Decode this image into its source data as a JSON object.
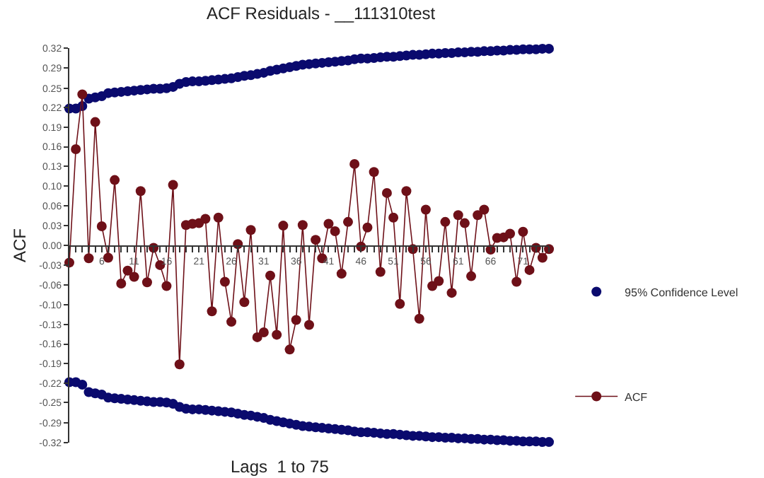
{
  "chart_data": {
    "type": "line",
    "title": "ACF Residuals - __111310test",
    "xlabel": "Lags  1 to 75",
    "ylabel": "ACF",
    "x": [
      1,
      2,
      3,
      4,
      5,
      6,
      7,
      8,
      9,
      10,
      11,
      12,
      13,
      14,
      15,
      16,
      17,
      18,
      19,
      20,
      21,
      22,
      23,
      24,
      25,
      26,
      27,
      28,
      29,
      30,
      31,
      32,
      33,
      34,
      35,
      36,
      37,
      38,
      39,
      40,
      41,
      42,
      43,
      44,
      45,
      46,
      47,
      48,
      49,
      50,
      51,
      52,
      53,
      54,
      55,
      56,
      57,
      58,
      59,
      60,
      61,
      62,
      63,
      64,
      65,
      66,
      67,
      68,
      69,
      70,
      71,
      72,
      73,
      74,
      75
    ],
    "series": [
      {
        "name": "95% Confidence Level",
        "type": "scatter",
        "color": "#0a0a6e",
        "values": [
          0.222,
          0.222,
          0.226,
          0.238,
          0.24,
          0.242,
          0.247,
          0.248,
          0.249,
          0.25,
          0.251,
          0.252,
          0.253,
          0.254,
          0.254,
          0.255,
          0.257,
          0.262,
          0.265,
          0.266,
          0.266,
          0.267,
          0.268,
          0.269,
          0.27,
          0.271,
          0.273,
          0.275,
          0.276,
          0.278,
          0.28,
          0.283,
          0.285,
          0.287,
          0.289,
          0.291,
          0.293,
          0.294,
          0.295,
          0.296,
          0.297,
          0.298,
          0.299,
          0.3,
          0.302,
          0.303,
          0.303,
          0.304,
          0.305,
          0.306,
          0.306,
          0.307,
          0.308,
          0.309,
          0.309,
          0.31,
          0.311,
          0.311,
          0.312,
          0.312,
          0.313,
          0.313,
          0.314,
          0.314,
          0.315,
          0.315,
          0.316,
          0.316,
          0.317,
          0.317,
          0.318,
          0.318,
          0.318,
          0.319,
          0.319
        ]
      },
      {
        "type": "scatter",
        "color": "#0a0a6e",
        "values": [
          -0.222,
          -0.222,
          -0.226,
          -0.238,
          -0.24,
          -0.242,
          -0.247,
          -0.248,
          -0.249,
          -0.25,
          -0.251,
          -0.252,
          -0.253,
          -0.254,
          -0.254,
          -0.255,
          -0.257,
          -0.262,
          -0.265,
          -0.266,
          -0.266,
          -0.267,
          -0.268,
          -0.269,
          -0.27,
          -0.271,
          -0.273,
          -0.275,
          -0.276,
          -0.278,
          -0.28,
          -0.283,
          -0.285,
          -0.287,
          -0.289,
          -0.291,
          -0.293,
          -0.294,
          -0.295,
          -0.296,
          -0.297,
          -0.298,
          -0.299,
          -0.3,
          -0.302,
          -0.303,
          -0.303,
          -0.304,
          -0.305,
          -0.306,
          -0.306,
          -0.307,
          -0.308,
          -0.309,
          -0.309,
          -0.31,
          -0.311,
          -0.311,
          -0.312,
          -0.312,
          -0.313,
          -0.313,
          -0.314,
          -0.314,
          -0.315,
          -0.315,
          -0.316,
          -0.316,
          -0.317,
          -0.317,
          -0.318,
          -0.318,
          -0.318,
          -0.319,
          -0.319
        ]
      },
      {
        "name": "ACF",
        "color": "#6e1018",
        "values": [
          -0.028,
          0.156,
          0.245,
          -0.021,
          0.2,
          0.031,
          -0.02,
          0.106,
          -0.062,
          -0.041,
          -0.051,
          0.088,
          -0.06,
          -0.004,
          -0.032,
          -0.066,
          0.098,
          -0.193,
          0.033,
          0.035,
          0.036,
          0.043,
          -0.107,
          0.045,
          -0.059,
          -0.124,
          0.002,
          -0.092,
          0.025,
          -0.149,
          -0.141,
          -0.049,
          -0.145,
          0.032,
          -0.169,
          -0.121,
          0.033,
          -0.129,
          0.009,
          -0.021,
          0.035,
          0.023,
          -0.046,
          0.038,
          0.132,
          -0.002,
          0.029,
          0.119,
          -0.043,
          0.085,
          0.045,
          -0.095,
          0.088,
          -0.006,
          -0.119,
          0.058,
          -0.066,
          -0.058,
          0.038,
          -0.077,
          0.049,
          0.036,
          -0.05,
          0.049,
          0.058,
          -0.007,
          0.012,
          0.013,
          0.019,
          -0.059,
          0.022,
          -0.04,
          -0.004,
          -0.02,
          -0.006
        ]
      }
    ],
    "xlim": [
      1,
      75
    ],
    "xticks": [
      {
        "value": 1,
        "label": null
      },
      {
        "value": 2,
        "label": null
      },
      {
        "value": 3,
        "label": null
      },
      {
        "value": 4,
        "label": null
      },
      {
        "value": 5,
        "label": null
      },
      6,
      {
        "value": 7,
        "label": null
      },
      {
        "value": 8,
        "label": null
      },
      {
        "value": 9,
        "label": null
      },
      {
        "value": 10,
        "label": null
      },
      11,
      {
        "value": 12,
        "label": null
      },
      {
        "value": 13,
        "label": null
      },
      {
        "value": 14,
        "label": null
      },
      {
        "value": 15,
        "label": null
      },
      16,
      {
        "value": 17,
        "label": null
      },
      {
        "value": 18,
        "label": null
      },
      {
        "value": 19,
        "label": null
      },
      {
        "value": 20,
        "label": null
      },
      21,
      {
        "value": 22,
        "label": null
      },
      {
        "value": 23,
        "label": null
      },
      {
        "value": 24,
        "label": null
      },
      {
        "value": 25,
        "label": null
      },
      26,
      {
        "value": 27,
        "label": null
      },
      {
        "value": 28,
        "label": null
      },
      {
        "value": 29,
        "label": null
      },
      {
        "value": 30,
        "label": null
      },
      31,
      {
        "value": 32,
        "label": null
      },
      {
        "value": 33,
        "label": null
      },
      {
        "value": 34,
        "label": null
      },
      {
        "value": 35,
        "label": null
      },
      36,
      {
        "value": 37,
        "label": null
      },
      {
        "value": 38,
        "label": null
      },
      {
        "value": 39,
        "label": null
      },
      {
        "value": 40,
        "label": null
      },
      41,
      {
        "value": 42,
        "label": null
      },
      {
        "value": 43,
        "label": null
      },
      {
        "value": 44,
        "label": null
      },
      {
        "value": 45,
        "label": null
      },
      46,
      {
        "value": 47,
        "label": null
      },
      {
        "value": 48,
        "label": null
      },
      {
        "value": 49,
        "label": null
      },
      {
        "value": 50,
        "label": null
      },
      51,
      {
        "value": 52,
        "label": null
      },
      {
        "value": 53,
        "label": null
      },
      {
        "value": 54,
        "label": null
      },
      {
        "value": 55,
        "label": null
      },
      56,
      {
        "value": 57,
        "label": null
      },
      {
        "value": 58,
        "label": null
      },
      {
        "value": 59,
        "label": null
      },
      {
        "value": 60,
        "label": null
      },
      61,
      {
        "value": 62,
        "label": null
      },
      {
        "value": 63,
        "label": null
      },
      {
        "value": 64,
        "label": null
      },
      {
        "value": 65,
        "label": null
      },
      66,
      {
        "value": 67,
        "label": null
      },
      {
        "value": 68,
        "label": null
      },
      {
        "value": 69,
        "label": null
      },
      {
        "value": 70,
        "label": null
      },
      71,
      {
        "value": 72,
        "label": null
      },
      {
        "value": 73,
        "label": null
      },
      {
        "value": 74,
        "label": null
      },
      {
        "value": 75,
        "label": null
      }
    ],
    "ylim": [
      -0.32,
      0.32
    ],
    "yticks": [
      {
        "value": -0.32,
        "label": "-0.32"
      },
      {
        "value": -0.288,
        "label": "-0.29"
      },
      {
        "value": -0.255,
        "label": "-0.25"
      },
      {
        "value": -0.224,
        "label": "-0.22"
      },
      {
        "value": -0.192,
        "label": "-0.19"
      },
      {
        "value": -0.16,
        "label": "-0.16"
      },
      {
        "value": -0.128,
        "label": "-0.13"
      },
      {
        "value": -0.096,
        "label": "-0.10"
      },
      {
        "value": -0.064,
        "label": "-0.06"
      },
      {
        "value": -0.032,
        "label": "-0.03"
      },
      {
        "value": 0,
        "label": "0.00"
      },
      {
        "value": 0.032,
        "label": "0.03"
      },
      {
        "value": 0.064,
        "label": "0.06"
      },
      {
        "value": 0.096,
        "label": "0.10"
      },
      {
        "value": 0.128,
        "label": "0.13"
      },
      {
        "value": 0.16,
        "label": "0.16"
      },
      {
        "value": 0.192,
        "label": "0.19"
      },
      {
        "value": 0.224,
        "label": "0.22"
      },
      {
        "value": 0.255,
        "label": "0.25"
      },
      {
        "value": 0.288,
        "label": "0.29"
      },
      {
        "value": 0.32,
        "label": "0.32"
      }
    ],
    "marker": "circle",
    "legend": "right"
  }
}
